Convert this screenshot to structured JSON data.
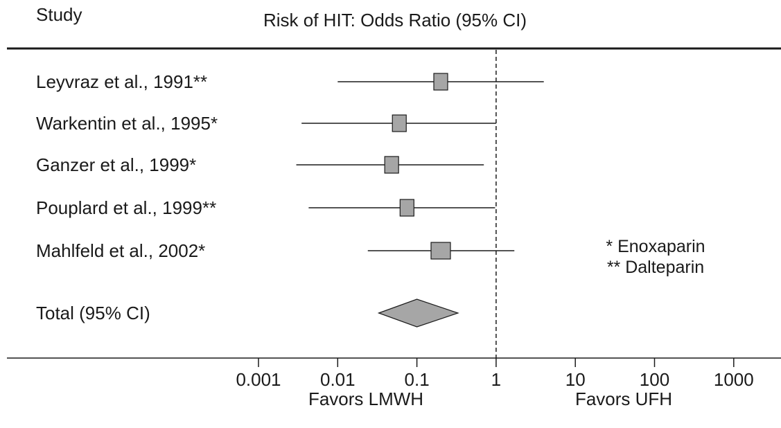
{
  "chart_data": {
    "type": "forest",
    "column_header": "Study",
    "title": "Risk of HIT: Odds Ratio (95% CI)",
    "x_scale": "log",
    "xlim": [
      0.0003,
      3000
    ],
    "x_ticks": [
      0.001,
      0.01,
      0.1,
      1,
      10,
      100,
      1000
    ],
    "x_tick_labels": [
      "0.001",
      "0.01",
      "0.1",
      "1",
      "10",
      "100",
      "1000"
    ],
    "reference_line": 1,
    "favors_left": "Favors LMWH",
    "favors_right": "Favors UFH",
    "studies": [
      {
        "label": "Leyvraz et al., 1991**",
        "or": 0.2,
        "ci_low": 0.01,
        "ci_high": 4.0
      },
      {
        "label": "Warkentin et al., 1995*",
        "or": 0.06,
        "ci_low": 0.0035,
        "ci_high": 1.0
      },
      {
        "label": "Ganzer et al., 1999*",
        "or": 0.048,
        "ci_low": 0.003,
        "ci_high": 0.7
      },
      {
        "label": "Pouplard et al., 1999**",
        "or": 0.075,
        "ci_low": 0.0043,
        "ci_high": 0.97
      },
      {
        "label": "Mahlfeld et al., 2002*",
        "or": 0.2,
        "ci_low": 0.024,
        "ci_high": 1.7
      }
    ],
    "total": {
      "label": "Total (95% CI)",
      "or": 0.1,
      "ci_low": 0.033,
      "ci_high": 0.33
    },
    "notes": [
      "* Enoxaparin",
      "** Dalteparin"
    ],
    "colors": {
      "marker_fill": "#a6a6a6",
      "line": "#1a1a1a"
    }
  }
}
